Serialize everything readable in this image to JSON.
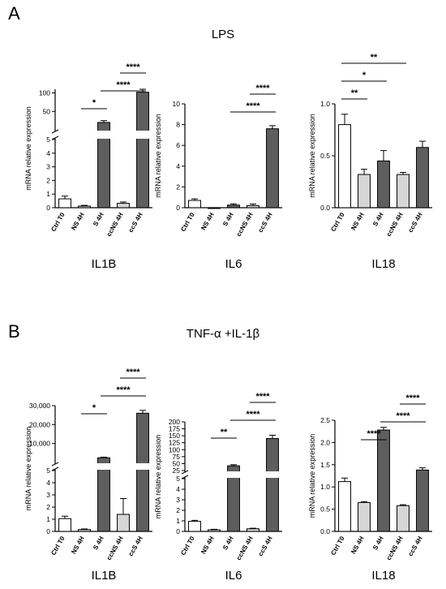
{
  "figure": {
    "panel_a": {
      "letter": "A",
      "title": "LPS"
    },
    "panel_b": {
      "letter": "B",
      "title": "TNF-α +IL-1β"
    }
  },
  "colors": {
    "ctrl": "#ffffff",
    "ns": "#d6d6d6",
    "s": "#5e5e5e",
    "ccns": "#d6d6d6",
    "ccs": "#5e5e5e",
    "stroke": "#000000"
  },
  "chart_data": [
    {
      "type": "bar",
      "panel": "A",
      "gene": "IL1B",
      "ylabel": "mRNA relative expression",
      "categories": [
        "Ctrl T0",
        "NS 4H",
        "S 4H",
        "ccNS 4H",
        "ccS 4H"
      ],
      "values": [
        0.65,
        0.12,
        20,
        0.32,
        102
      ],
      "errors": [
        0.2,
        0.05,
        5,
        0.1,
        8
      ],
      "axis_break": {
        "lower": [
          0,
          5
        ],
        "upper": [
          0,
          110
        ]
      },
      "yticks_lower": [
        "0",
        "1",
        "2",
        "3",
        "4",
        "5"
      ],
      "yticks_upper": [
        "50",
        "100"
      ],
      "significance": [
        {
          "from": 1,
          "to": 2,
          "label": "*"
        },
        {
          "from": 2,
          "to": 4,
          "label": "****"
        },
        {
          "from": 3,
          "to": 4,
          "label": "****"
        }
      ]
    },
    {
      "type": "bar",
      "panel": "A",
      "gene": "IL6",
      "ylabel": "mRNA relative expression",
      "categories": [
        "Ctrl T0",
        "NS 4H",
        "S 4H",
        "ccNS 4H",
        "ccS 4H"
      ],
      "values": [
        0.7,
        0.0,
        0.25,
        0.2,
        7.6
      ],
      "errors": [
        0.15,
        0,
        0.12,
        0.15,
        0.3
      ],
      "ylim": [
        0,
        10
      ],
      "yticks": [
        "0",
        "2",
        "4",
        "6",
        "8",
        "10"
      ],
      "significance": [
        {
          "from": 2,
          "to": 4,
          "label": "****"
        },
        {
          "from": 3,
          "to": 4,
          "label": "****"
        }
      ]
    },
    {
      "type": "bar",
      "panel": "A",
      "gene": "IL18",
      "ylabel": "mRNA relative expression",
      "categories": [
        "Ctrl T0",
        "NS 4H",
        "S 4H",
        "ccNS 4H",
        "ccS 4H"
      ],
      "values": [
        0.8,
        0.32,
        0.45,
        0.32,
        0.58
      ],
      "errors": [
        0.1,
        0.05,
        0.1,
        0.02,
        0.06
      ],
      "ylim": [
        0,
        1.0
      ],
      "yticks": [
        "0.0",
        "0.5",
        "1.0"
      ],
      "significance": [
        {
          "from": 0,
          "to": 1,
          "label": "**"
        },
        {
          "from": 0,
          "to": 2,
          "label": "*"
        },
        {
          "from": 0,
          "to": 3,
          "label": "**"
        }
      ]
    },
    {
      "type": "bar",
      "panel": "B",
      "gene": "IL1B",
      "ylabel": "mRNA relative expression",
      "categories": [
        "Ctrl T0",
        "NS 4H",
        "S 4H",
        "ccNS 4H",
        "ccS 4H"
      ],
      "values": [
        1.05,
        0.15,
        2500,
        1.4,
        26000
      ],
      "errors": [
        0.2,
        0.05,
        300,
        1.3,
        1500
      ],
      "axis_break": {
        "lower": [
          0,
          5
        ],
        "upper": [
          0,
          30000
        ]
      },
      "yticks_lower": [
        "0",
        "1",
        "2",
        "3",
        "4",
        "5"
      ],
      "yticks_upper": [
        "10,000",
        "20,000",
        "30,000"
      ],
      "significance": [
        {
          "from": 1,
          "to": 2,
          "label": "*"
        },
        {
          "from": 2,
          "to": 4,
          "label": "****"
        },
        {
          "from": 3,
          "to": 4,
          "label": "****"
        }
      ]
    },
    {
      "type": "bar",
      "panel": "B",
      "gene": "IL6",
      "ylabel": "mRNA relative expression",
      "categories": [
        "Ctrl T0",
        "NS 4H",
        "S 4H",
        "ccNS 4H",
        "ccS 4H"
      ],
      "values": [
        0.95,
        0.15,
        42,
        0.25,
        140
      ],
      "errors": [
        0.1,
        0.05,
        4,
        0.05,
        12
      ],
      "axis_break": {
        "lower": [
          0,
          5
        ],
        "upper": [
          25,
          200
        ]
      },
      "yticks_lower": [
        "0",
        "1",
        "2",
        "3",
        "4",
        "5"
      ],
      "yticks_upper": [
        "25",
        "50",
        "75",
        "100",
        "125",
        "150",
        "175",
        "200"
      ],
      "significance": [
        {
          "from": 1,
          "to": 2,
          "label": "**"
        },
        {
          "from": 2,
          "to": 4,
          "label": "****"
        },
        {
          "from": 3,
          "to": 4,
          "label": "****"
        }
      ]
    },
    {
      "type": "bar",
      "panel": "B",
      "gene": "IL18",
      "ylabel": "mRNA relative expression",
      "categories": [
        "Ctrl T0",
        "NS 4H",
        "S 4H",
        "ccNS 4H",
        "ccS 4H"
      ],
      "values": [
        1.12,
        0.65,
        2.28,
        0.58,
        1.38
      ],
      "errors": [
        0.08,
        0.02,
        0.06,
        0.02,
        0.05
      ],
      "ylim": [
        0,
        2.5
      ],
      "yticks": [
        "0.0",
        "0.5",
        "1.0",
        "1.5",
        "2.0",
        "2.5"
      ],
      "significance": [
        {
          "from": 1,
          "to": 2,
          "label": "****"
        },
        {
          "from": 2,
          "to": 4,
          "label": "****"
        },
        {
          "from": 3,
          "to": 4,
          "label": "****"
        }
      ]
    }
  ]
}
